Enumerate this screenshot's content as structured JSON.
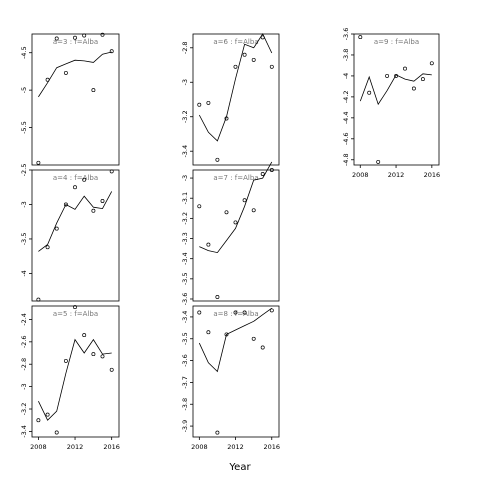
{
  "figure": {
    "xlabel": "Year"
  },
  "chart_data": [
    {
      "type": "line",
      "title": "a=3 : f=Alba",
      "x": [
        2008,
        2009,
        2010,
        2011,
        2012,
        2013,
        2014,
        2015,
        2016
      ],
      "series": [
        {
          "kind": "points",
          "values": [
            -5.97,
            -4.86,
            -4.31,
            -4.77,
            -4.3,
            -4.27,
            -5.0,
            -4.26,
            -4.48
          ]
        },
        {
          "kind": "line",
          "values": [
            -5.09,
            -4.9,
            -4.7,
            -4.65,
            -4.6,
            -4.61,
            -4.63,
            -4.52,
            -4.49
          ]
        }
      ],
      "ylim": [
        -6.0,
        -4.25
      ],
      "yticks": [
        -4.5,
        -5.0,
        -5.5
      ],
      "xticks": []
    },
    {
      "type": "line",
      "title": "a=6 : f=Alba",
      "x": [
        2008,
        2009,
        2010,
        2011,
        2012,
        2013,
        2014,
        2015,
        2016
      ],
      "series": [
        {
          "kind": "points",
          "values": [
            -3.13,
            -3.12,
            -3.45,
            -3.21,
            -2.91,
            -2.84,
            -2.87,
            -2.74,
            -2.91
          ]
        },
        {
          "kind": "line",
          "values": [
            -3.19,
            -3.29,
            -3.34,
            -3.2,
            -2.98,
            -2.78,
            -2.8,
            -2.72,
            -2.83
          ]
        }
      ],
      "ylim": [
        -3.48,
        -2.72
      ],
      "yticks": [
        -2.8,
        -3.0,
        -3.2,
        -3.4
      ],
      "xticks": []
    },
    {
      "type": "line",
      "title": "a=9 : f=Alba",
      "x": [
        2008,
        2009,
        2010,
        2011,
        2012,
        2013,
        2014,
        2015,
        2016
      ],
      "series": [
        {
          "kind": "points",
          "values": [
            -3.63,
            -4.16,
            -4.82,
            -4.0,
            -4.0,
            -3.93,
            -4.12,
            -4.03,
            -3.88
          ]
        },
        {
          "kind": "line",
          "values": [
            -4.24,
            -4.01,
            -4.27,
            -4.14,
            -3.99,
            -4.03,
            -4.05,
            -3.98,
            -3.99
          ]
        }
      ],
      "ylim": [
        -4.85,
        -3.6
      ],
      "yticks": [
        -3.6,
        -3.8,
        -4.0,
        -4.2,
        -4.4,
        -4.6,
        -4.8
      ],
      "xticks": [
        2008,
        2012,
        2016
      ]
    },
    {
      "type": "line",
      "title": "a=4 : f=Alba",
      "x": [
        2008,
        2009,
        2010,
        2011,
        2012,
        2013,
        2014,
        2015,
        2016
      ],
      "series": [
        {
          "kind": "points",
          "values": [
            -4.38,
            -3.62,
            -3.35,
            -3.0,
            -2.75,
            -2.64,
            -3.09,
            -2.95,
            -2.52
          ]
        },
        {
          "kind": "line",
          "values": [
            -3.68,
            -3.58,
            -3.27,
            -3.0,
            -3.07,
            -2.88,
            -3.04,
            -3.06,
            -2.81
          ]
        }
      ],
      "ylim": [
        -4.4,
        -2.5
      ],
      "yticks": [
        -2.5,
        -3.0,
        -3.5,
        -4.0
      ],
      "xticks": []
    },
    {
      "type": "line",
      "title": "a=7 : f=Alba",
      "x": [
        2008,
        2009,
        2010,
        2011,
        2012,
        2013,
        2014,
        2015,
        2016
      ],
      "series": [
        {
          "kind": "points",
          "values": [
            -3.14,
            -3.33,
            -3.59,
            -3.17,
            -3.22,
            -3.11,
            -3.16,
            -2.98,
            -2.96
          ]
        },
        {
          "kind": "line",
          "values": [
            -3.34,
            -3.36,
            -3.37,
            -3.31,
            -3.25,
            -3.14,
            -3.01,
            -3.0,
            -2.92
          ]
        }
      ],
      "ylim": [
        -3.61,
        -2.96
      ],
      "yticks": [
        -3.0,
        -3.1,
        -3.2,
        -3.3,
        -3.4,
        -3.5,
        -3.6
      ],
      "xticks": []
    },
    {
      "type": "line",
      "title": "a=5 : f=Alba",
      "x": [
        2008,
        2009,
        2010,
        2011,
        2012,
        2013,
        2014,
        2015,
        2016
      ],
      "series": [
        {
          "kind": "points",
          "values": [
            -3.3,
            -3.25,
            -3.41,
            -2.77,
            -2.29,
            -2.54,
            -2.71,
            -2.73,
            -2.85
          ]
        },
        {
          "kind": "line",
          "values": [
            -3.13,
            -3.3,
            -3.22,
            -2.88,
            -2.58,
            -2.7,
            -2.58,
            -2.71,
            -2.7
          ]
        }
      ],
      "ylim": [
        -3.45,
        -2.28
      ],
      "yticks": [
        -2.4,
        -2.6,
        -2.8,
        -3.0,
        -3.2,
        -3.4
      ],
      "xticks": [
        2008,
        2012,
        2016
      ]
    },
    {
      "type": "line",
      "title": "a=8 : f=Alba",
      "x": [
        2008,
        2009,
        2010,
        2011,
        2012,
        2013,
        2014,
        2015,
        2016
      ],
      "series": [
        {
          "kind": "points",
          "values": [
            -3.38,
            -3.47,
            -3.93,
            -3.48,
            -3.38,
            -3.38,
            -3.5,
            -3.54,
            -3.37
          ]
        },
        {
          "kind": "line",
          "values": [
            -3.52,
            -3.61,
            -3.65,
            -3.48,
            -3.46,
            -3.44,
            -3.42,
            -3.39,
            -3.36
          ]
        }
      ],
      "ylim": [
        -3.95,
        -3.35
      ],
      "yticks": [
        -3.4,
        -3.5,
        -3.6,
        -3.7,
        -3.8,
        -3.9
      ],
      "xticks": [
        2008,
        2012,
        2016
      ]
    }
  ]
}
